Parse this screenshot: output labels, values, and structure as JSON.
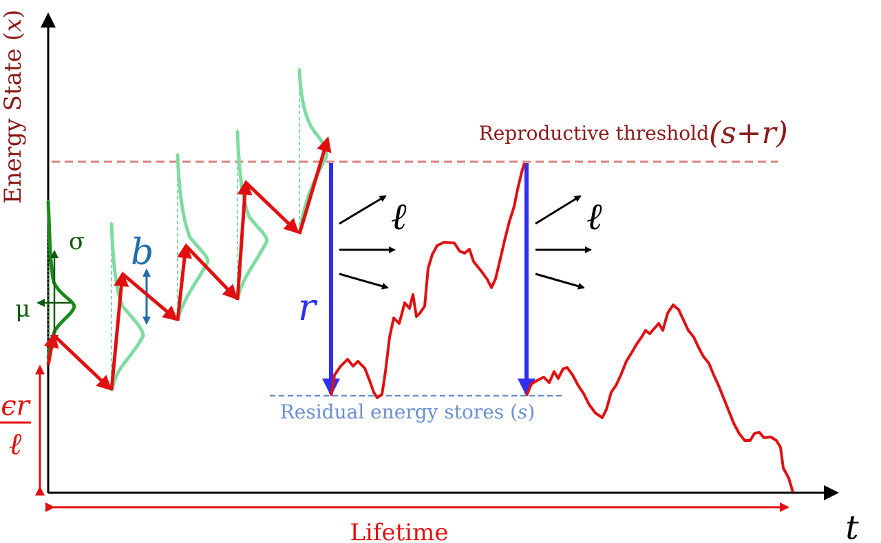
{
  "axes": {
    "y_label": "Energy State (𝑥)",
    "x_label": "𝑡"
  },
  "labels": {
    "threshold": "Reproductive threshold",
    "threshold_expr": "(𝑠+𝑟)",
    "residual": "Residual energy stores (𝑠)",
    "lifetime": "Lifetime",
    "sigma": "σ",
    "mu": "μ",
    "b": "𝑏",
    "r": "𝑟",
    "ell_1": "ℓ",
    "ell_2": "ℓ",
    "frac_num": "ϵ𝑟",
    "frac_den": "ℓ"
  },
  "colors": {
    "trajectory": "#e01010",
    "threshold": "#8b1a1a",
    "threshold_line": "#d98080",
    "residual": "#6a8fd0",
    "drop_arrow": "#3030f0",
    "distribution_dark": "#1a8a1a",
    "distribution_light": "#7fdca0",
    "b_arrow": "#1f6ea8",
    "axis": "#000000"
  }
}
